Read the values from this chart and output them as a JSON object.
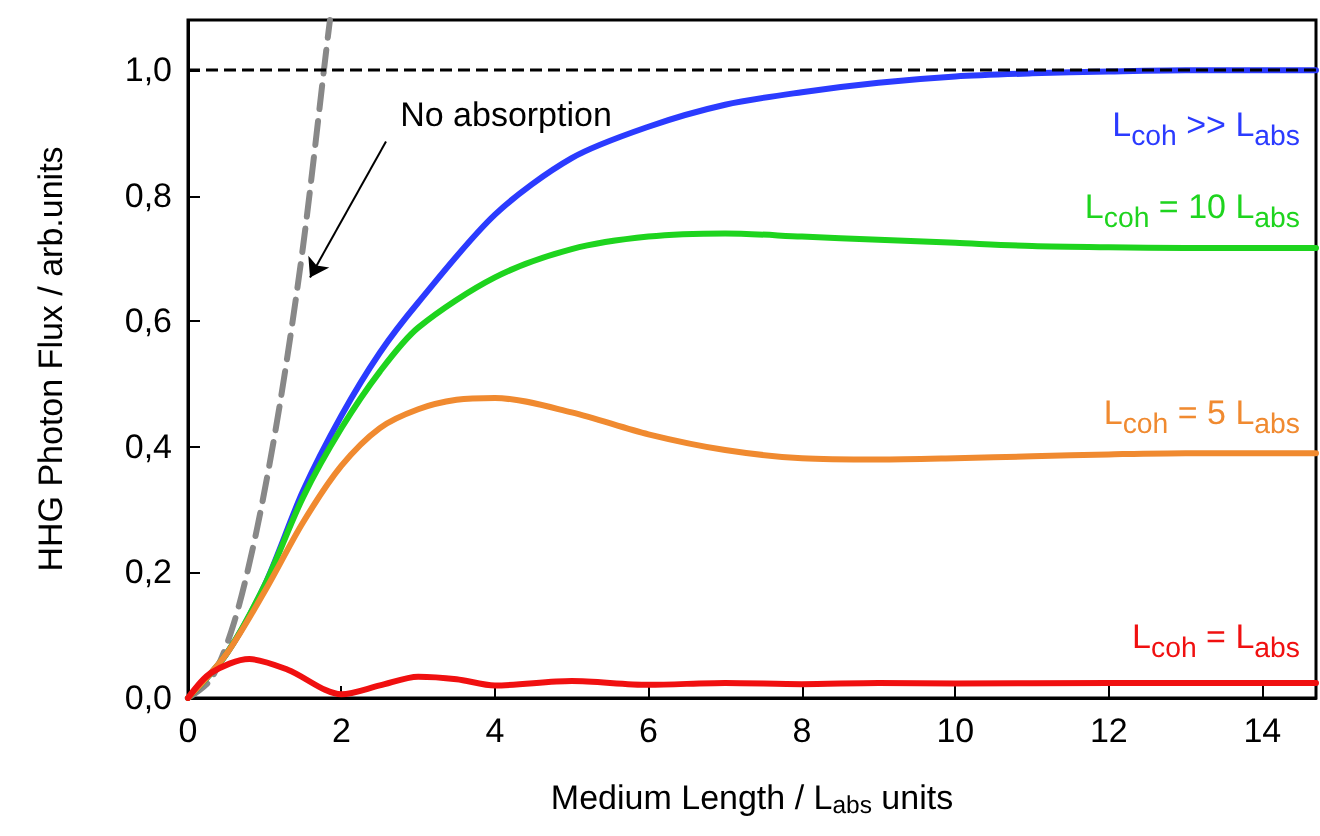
{
  "chart_data": {
    "type": "line",
    "xlabel": "Medium Length / L$_{abs}$ units",
    "ylabel": "HHG Photon Flux / arb.units",
    "xlim": [
      0,
      14.7
    ],
    "ylim": [
      0,
      1.08
    ],
    "xticks": [
      0,
      2,
      4,
      6,
      8,
      10,
      12,
      14
    ],
    "yticks": [
      {
        "value": 0,
        "label": "0,0"
      },
      {
        "value": 0.2,
        "label": "0,2"
      },
      {
        "value": 0.4,
        "label": "0,4"
      },
      {
        "value": 0.6,
        "label": "0,6"
      },
      {
        "value": 0.8,
        "label": "0,8"
      },
      {
        "value": 1.0,
        "label": "1,0"
      }
    ],
    "grid": false,
    "legend": false,
    "marker": "none",
    "line_style": "solid",
    "ref_lines": [
      {
        "axis": "y",
        "value": 1.0,
        "color": "#000000",
        "line_style": "dashed"
      }
    ],
    "annotations": [
      {
        "text": "No absorption",
        "x": 1.59,
        "y": 0.67
      }
    ],
    "series": [
      {
        "color": "#888888",
        "line_style": "dashed",
        "x": [
          0,
          0.3,
          0.6,
          0.9,
          1.2,
          1.5,
          1.8,
          1.85
        ],
        "values": [
          0,
          0.03,
          0.12,
          0.27,
          0.47,
          0.72,
          1.03,
          1.08
        ]
      },
      {
        "name": "L$_{coh}$ >> L$_{abs}$",
        "color": "#2b3bff",
        "x": [
          0,
          0.5,
          1,
          1.5,
          2,
          2.5,
          3,
          4,
          5,
          6,
          7,
          8,
          9,
          10,
          11,
          12,
          13,
          14,
          14.7
        ],
        "values": [
          0,
          0.07,
          0.18,
          0.33,
          0.45,
          0.55,
          0.63,
          0.77,
          0.86,
          0.91,
          0.945,
          0.965,
          0.98,
          0.99,
          0.995,
          0.998,
          1.0,
          1.0,
          1.0
        ]
      },
      {
        "name": "L$_{coh}$ = 10 L$_{abs}$",
        "color": "#1ed41e",
        "x": [
          0,
          0.5,
          1,
          1.5,
          2,
          2.5,
          3,
          4,
          5,
          6,
          7,
          8,
          9,
          10,
          11,
          12,
          13,
          14,
          14.7
        ],
        "values": [
          0,
          0.07,
          0.18,
          0.32,
          0.43,
          0.52,
          0.59,
          0.67,
          0.715,
          0.735,
          0.74,
          0.735,
          0.73,
          0.725,
          0.72,
          0.718,
          0.717,
          0.717,
          0.717
        ]
      },
      {
        "name": "L$_{coh}$ = 5 L$_{abs}$",
        "color": "#f08a30",
        "x": [
          0,
          0.5,
          1,
          1.5,
          2,
          2.5,
          3,
          3.5,
          4,
          5,
          6,
          7,
          8,
          9,
          10,
          11,
          12,
          13,
          14,
          14.7
        ],
        "values": [
          0,
          0.07,
          0.17,
          0.28,
          0.37,
          0.43,
          0.46,
          0.475,
          0.478,
          0.455,
          0.42,
          0.395,
          0.382,
          0.38,
          0.382,
          0.385,
          0.388,
          0.39,
          0.39,
          0.39
        ]
      },
      {
        "name": "L$_{coh}$ = L$_{abs}$",
        "color": "#f01010",
        "x": [
          0,
          0.3,
          0.8,
          1.3,
          2,
          2.5,
          3,
          3.5,
          4,
          5,
          6,
          7,
          8,
          9,
          10,
          12,
          14.7
        ],
        "values": [
          0,
          0.04,
          0.062,
          0.045,
          0.006,
          0.02,
          0.034,
          0.03,
          0.02,
          0.027,
          0.021,
          0.024,
          0.022,
          0.024,
          0.023,
          0.024,
          0.024
        ]
      }
    ]
  }
}
